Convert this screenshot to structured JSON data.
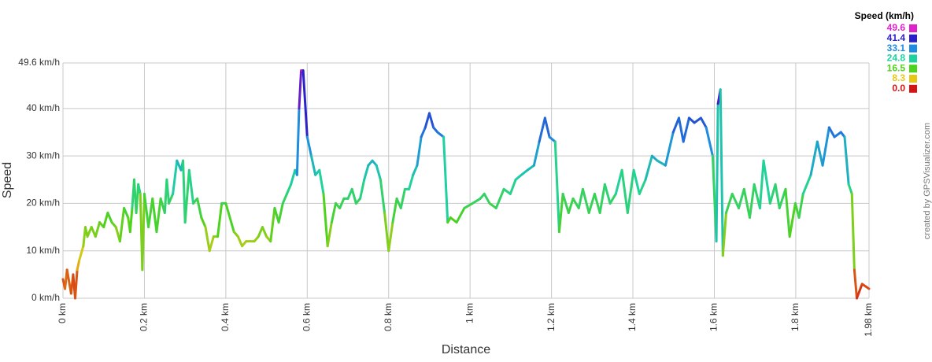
{
  "chart_data": {
    "type": "line",
    "x_label": "Distance",
    "y_label": "Speed",
    "credit": "created by GPSVisualizer.com",
    "legend_title": "Speed (km/h)",
    "color_scale": [
      {
        "value": 49.6,
        "color": "#e020c8"
      },
      {
        "value": 41.4,
        "color": "#2a1ec8"
      },
      {
        "value": 33.1,
        "color": "#1e8ce0"
      },
      {
        "value": 24.8,
        "color": "#1ed2a0"
      },
      {
        "value": 16.5,
        "color": "#4ed21e"
      },
      {
        "value": 8.3,
        "color": "#e6c814"
      },
      {
        "value": {
          "value": 0,
          "label": "0.0"
        },
        "color": "#d21414"
      }
    ],
    "xlim": [
      0,
      1.98
    ],
    "ylim": [
      0,
      49.6
    ],
    "xticks": [
      {
        "value": 0,
        "label": "0 km"
      },
      {
        "value": 0.2,
        "label": "0.2 km"
      },
      {
        "value": 0.4,
        "label": "0.4 km"
      },
      {
        "value": 0.6,
        "label": "0.6 km"
      },
      {
        "value": 0.8,
        "label": "0.8 km"
      },
      {
        "value": 1,
        "label": "1 km"
      },
      {
        "value": 1.2,
        "label": "1.2 km"
      },
      {
        "value": 1.4,
        "label": "1.4 km"
      },
      {
        "value": 1.6,
        "label": "1.6 km"
      },
      {
        "value": 1.8,
        "label": "1.8 km"
      },
      {
        "value": 1.98,
        "label": "1.98 km"
      }
    ],
    "yticks": [
      {
        "value": 0,
        "label": "0 km/h"
      },
      {
        "value": 10,
        "label": "10 km/h"
      },
      {
        "value": 20,
        "label": "20 km/h"
      },
      {
        "value": 30,
        "label": "30 km/h"
      },
      {
        "value": 40,
        "label": "40 km/h"
      },
      {
        "value": 49.6,
        "label": "49.6 km/h"
      }
    ],
    "grid": true,
    "x": [
      0,
      0.005,
      0.01,
      0.02,
      0.025,
      0.03,
      0.035,
      0.04,
      0.05,
      0.055,
      0.06,
      0.07,
      0.08,
      0.09,
      0.1,
      0.11,
      0.12,
      0.13,
      0.14,
      0.15,
      0.16,
      0.165,
      0.17,
      0.175,
      0.18,
      0.185,
      0.19,
      0.195,
      0.2,
      0.21,
      0.22,
      0.23,
      0.24,
      0.25,
      0.255,
      0.26,
      0.27,
      0.28,
      0.29,
      0.295,
      0.3,
      0.31,
      0.32,
      0.33,
      0.34,
      0.35,
      0.36,
      0.37,
      0.38,
      0.39,
      0.4,
      0.42,
      0.43,
      0.44,
      0.45,
      0.47,
      0.48,
      0.49,
      0.5,
      0.51,
      0.52,
      0.53,
      0.54,
      0.55,
      0.56,
      0.57,
      0.575,
      0.58,
      0.585,
      0.59,
      0.6,
      0.61,
      0.62,
      0.63,
      0.64,
      0.65,
      0.66,
      0.67,
      0.68,
      0.69,
      0.7,
      0.71,
      0.72,
      0.73,
      0.74,
      0.75,
      0.76,
      0.77,
      0.78,
      0.79,
      0.8,
      0.81,
      0.82,
      0.83,
      0.84,
      0.85,
      0.86,
      0.87,
      0.88,
      0.89,
      0.9,
      0.91,
      0.92,
      0.935,
      0.945,
      0.952,
      0.967,
      0.986,
      1.006,
      1.025,
      1.035,
      1.048,
      1.064,
      1.083,
      1.099,
      1.112,
      1.126,
      1.141,
      1.157,
      1.17,
      1.184,
      1.195,
      1.209,
      1.219,
      1.228,
      1.242,
      1.253,
      1.267,
      1.277,
      1.292,
      1.306,
      1.319,
      1.331,
      1.344,
      1.358,
      1.373,
      1.387,
      1.402,
      1.416,
      1.431,
      1.447,
      1.46,
      1.48,
      1.499,
      1.513,
      1.524,
      1.538,
      1.551,
      1.567,
      1.58,
      1.596,
      1.605,
      1.609,
      1.615,
      1.621,
      1.629,
      1.644,
      1.66,
      1.673,
      1.687,
      1.698,
      1.712,
      1.721,
      1.737,
      1.75,
      1.76,
      1.775,
      1.785,
      1.799,
      1.808,
      1.818,
      1.837,
      1.853,
      1.866,
      1.882,
      1.895,
      1.911,
      1.92,
      1.93,
      1.938,
      1.944,
      1.95,
      1.963,
      1.98
    ],
    "series": [
      {
        "name": "Speed",
        "values": [
          4,
          2,
          6,
          1,
          5,
          0,
          6,
          8,
          11,
          15,
          13,
          15,
          13,
          16,
          15,
          18,
          16,
          15,
          12,
          19,
          17,
          14,
          19,
          25,
          18,
          24,
          22,
          6,
          22,
          15,
          21,
          14,
          21,
          18,
          25,
          20,
          22,
          29,
          27,
          29,
          16,
          27,
          20,
          21,
          17,
          15,
          10,
          13,
          13,
          20,
          20,
          14,
          13,
          11,
          12,
          12,
          13,
          15,
          13,
          12,
          19,
          16,
          20,
          22,
          24,
          27,
          26,
          40,
          48,
          48,
          34,
          30,
          26,
          27,
          22,
          11,
          16,
          20,
          19,
          21,
          21,
          23,
          20,
          21,
          25,
          28,
          29,
          28,
          25,
          18,
          10,
          16,
          21,
          19,
          23,
          23,
          26,
          28,
          34,
          36,
          39,
          36,
          35,
          34,
          16,
          17,
          16,
          19,
          20,
          21,
          22,
          20,
          19,
          23,
          22,
          25,
          26,
          27,
          28,
          33,
          38,
          34,
          33,
          14,
          22,
          18,
          21,
          19,
          23,
          18,
          22,
          18,
          24,
          20,
          22,
          27,
          18,
          27,
          22,
          25,
          30,
          29,
          28,
          35,
          38,
          33,
          38,
          37,
          38,
          36,
          30,
          12,
          41,
          44,
          9,
          18,
          22,
          19,
          23,
          17,
          24,
          19,
          29,
          20,
          24,
          19,
          23,
          13,
          20,
          17,
          22,
          26,
          33,
          28,
          36,
          34,
          35,
          34,
          24,
          22,
          6,
          0,
          3,
          2
        ]
      }
    ]
  }
}
